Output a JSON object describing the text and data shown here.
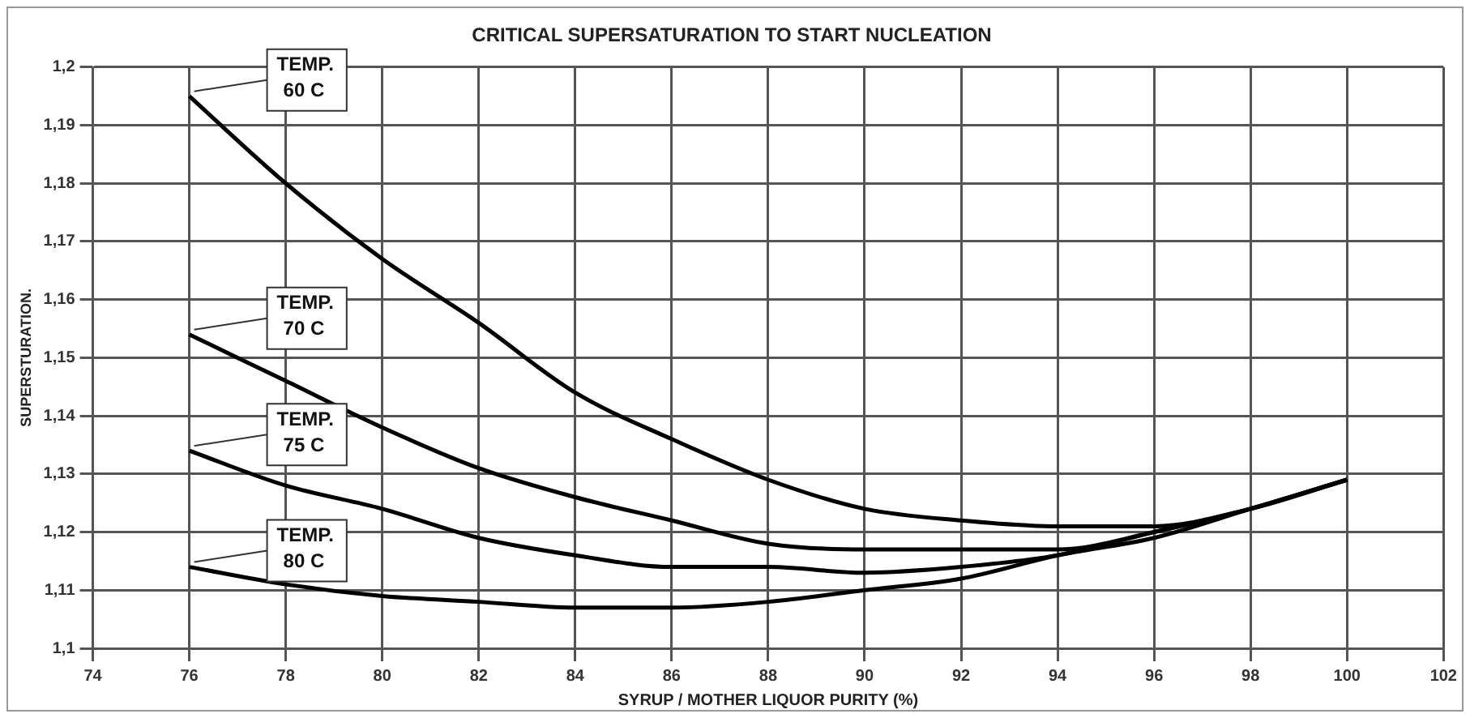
{
  "chart_data": {
    "type": "line",
    "title": "CRITICAL SUPERSATURATION TO START NUCLEATION",
    "xlabel": "SYRUP / MOTHER LIQUOR PURITY (%)",
    "ylabel": "SUPERSTURATION.",
    "x": [
      76,
      78,
      80,
      82,
      84,
      86,
      88,
      90,
      92,
      94,
      96,
      98,
      100
    ],
    "series": [
      {
        "name": "TEMP. 60 C",
        "color": "#000000",
        "values": [
          1.195,
          1.18,
          1.167,
          1.156,
          1.144,
          1.136,
          1.129,
          1.124,
          1.122,
          1.121,
          1.121,
          1.124,
          1.129
        ]
      },
      {
        "name": "TEMP. 70 C",
        "color": "#000000",
        "values": [
          1.154,
          1.146,
          1.138,
          1.131,
          1.126,
          1.122,
          1.118,
          1.117,
          1.117,
          1.117,
          1.12,
          1.124,
          1.129
        ]
      },
      {
        "name": "TEMP. 75 C",
        "color": "#000000",
        "values": [
          1.134,
          1.128,
          1.124,
          1.119,
          1.116,
          1.114,
          1.114,
          1.113,
          1.114,
          1.116,
          1.12,
          1.124,
          1.129
        ]
      },
      {
        "name": "TEMP. 80 C",
        "color": "#000000",
        "values": [
          1.114,
          1.111,
          1.109,
          1.108,
          1.107,
          1.107,
          1.108,
          1.11,
          1.112,
          1.116,
          1.119,
          1.124,
          1.129
        ]
      }
    ],
    "xlim": [
      74,
      102
    ],
    "xticks": [
      74,
      76,
      78,
      80,
      82,
      84,
      86,
      88,
      90,
      92,
      94,
      96,
      98,
      100,
      102
    ],
    "ylim": [
      1.1,
      1.2
    ],
    "yticks": [
      {
        "value": 1.1,
        "label": "1,1"
      },
      {
        "value": 1.11,
        "label": "1,11"
      },
      {
        "value": 1.12,
        "label": "1,12"
      },
      {
        "value": 1.13,
        "label": "1,13"
      },
      {
        "value": 1.14,
        "label": "1,14"
      },
      {
        "value": 1.15,
        "label": "1,15"
      },
      {
        "value": 1.16,
        "label": "1,16"
      },
      {
        "value": 1.17,
        "label": "1,17"
      },
      {
        "value": 1.18,
        "label": "1,18"
      },
      {
        "value": 1.19,
        "label": "1,19"
      },
      {
        "value": 1.2,
        "label": "1,2"
      }
    ],
    "grid": true,
    "legend": false,
    "marker": "none",
    "line_style": "solid"
  }
}
